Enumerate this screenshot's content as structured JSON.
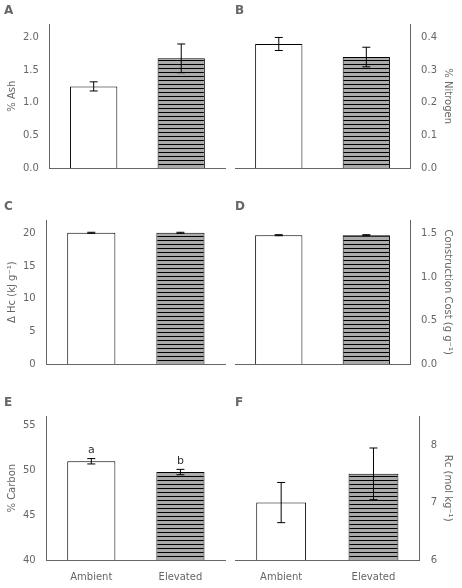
{
  "chart_data": [
    {
      "type": "bar",
      "title": "A",
      "categories": [
        null,
        null
      ],
      "series": [
        {
          "values": [
            1.25,
            1.68
          ],
          "errors": [
            0.07,
            0.22
          ],
          "colors": [
            "#ffffff",
            "#aaaaaa"
          ]
        }
      ],
      "ylabel": "% Ash",
      "ylim": [
        0.0,
        2.2
      ],
      "yticks": [
        {
          "value": 0.0,
          "label": "0.0"
        },
        {
          "value": 0.5,
          "label": "0.5"
        },
        {
          "value": 1.0,
          "label": "1.0"
        },
        {
          "value": 1.5,
          "label": "1.5"
        },
        {
          "value": 2.0,
          "label": "2.0"
        }
      ],
      "grid": false
    },
    {
      "type": "bar",
      "title": "B",
      "categories": [
        null,
        null
      ],
      "series": [
        {
          "values": [
            0.38,
            0.34
          ],
          "errors": [
            0.02,
            0.03
          ],
          "colors": [
            "#ffffff",
            "#aaaaaa"
          ],
          "axis": "y2"
        }
      ],
      "y2label": "% Nitrogen",
      "y2lim": [
        0.0,
        0.44
      ],
      "y2ticks": [
        {
          "value": 0.0,
          "label": "0.0"
        },
        {
          "value": 0.1,
          "label": "0.1"
        },
        {
          "value": 0.2,
          "label": "0.2"
        },
        {
          "value": 0.3,
          "label": "0.3"
        },
        {
          "value": 0.4,
          "label": "0.4"
        }
      ],
      "grid": false
    },
    {
      "type": "bar",
      "title": "C",
      "categories": [
        null,
        null
      ],
      "series": [
        {
          "values": [
            20.1,
            20.1
          ],
          "errors": [
            0.08,
            0.08
          ],
          "colors": [
            "#ffffff",
            "#aaaaaa"
          ]
        }
      ],
      "ylabel": "Δ Hᴄ (kJ g⁻¹)",
      "ylim": [
        0,
        22
      ],
      "yticks": [
        0,
        5,
        10,
        15,
        20
      ],
      "grid": false
    },
    {
      "type": "bar",
      "title": "D",
      "categories": [
        null,
        null
      ],
      "series": [
        {
          "values": [
            1.48,
            1.48
          ],
          "errors": [
            0.006,
            0.006
          ],
          "colors": [
            "#ffffff",
            "#aaaaaa"
          ],
          "axis": "y2"
        }
      ],
      "y2label": "Construction Cost (g g⁻¹)",
      "y2lim": [
        0.0,
        1.65
      ],
      "y2ticks": [
        {
          "value": 0.0,
          "label": "0.0"
        },
        {
          "value": 0.5,
          "label": "0.5"
        },
        {
          "value": 1.0,
          "label": "1.0"
        },
        {
          "value": 1.5,
          "label": "1.5"
        }
      ],
      "grid": false
    },
    {
      "type": "bar",
      "title": "E",
      "categories": [
        "Ambient",
        "Elevated"
      ],
      "series": [
        {
          "values": [
            51.0,
            49.8
          ],
          "errors": [
            0.3,
            0.3
          ],
          "colors": [
            "#ffffff",
            "#aaaaaa"
          ]
        }
      ],
      "ylabel": "% Carbon",
      "ylim": [
        40,
        56
      ],
      "yticks": [
        40,
        45,
        50,
        55
      ],
      "annotations": [
        {
          "text": "a",
          "category": "Ambient"
        },
        {
          "text": "b",
          "category": "Elevated"
        }
      ],
      "grid": false
    },
    {
      "type": "bar",
      "title": "F",
      "categories": [
        "Ambient",
        "Elevated"
      ],
      "series": [
        {
          "values": [
            7.0,
            7.5
          ],
          "errors": [
            0.35,
            0.45
          ],
          "colors": [
            "#ffffff",
            "#aaaaaa"
          ],
          "axis": "y2"
        }
      ],
      "y2label": "Rᴄ (mol kg⁻¹)",
      "y2lim": [
        6.0,
        8.5
      ],
      "y2ticks": [
        6,
        7,
        8
      ],
      "grid": false
    }
  ]
}
